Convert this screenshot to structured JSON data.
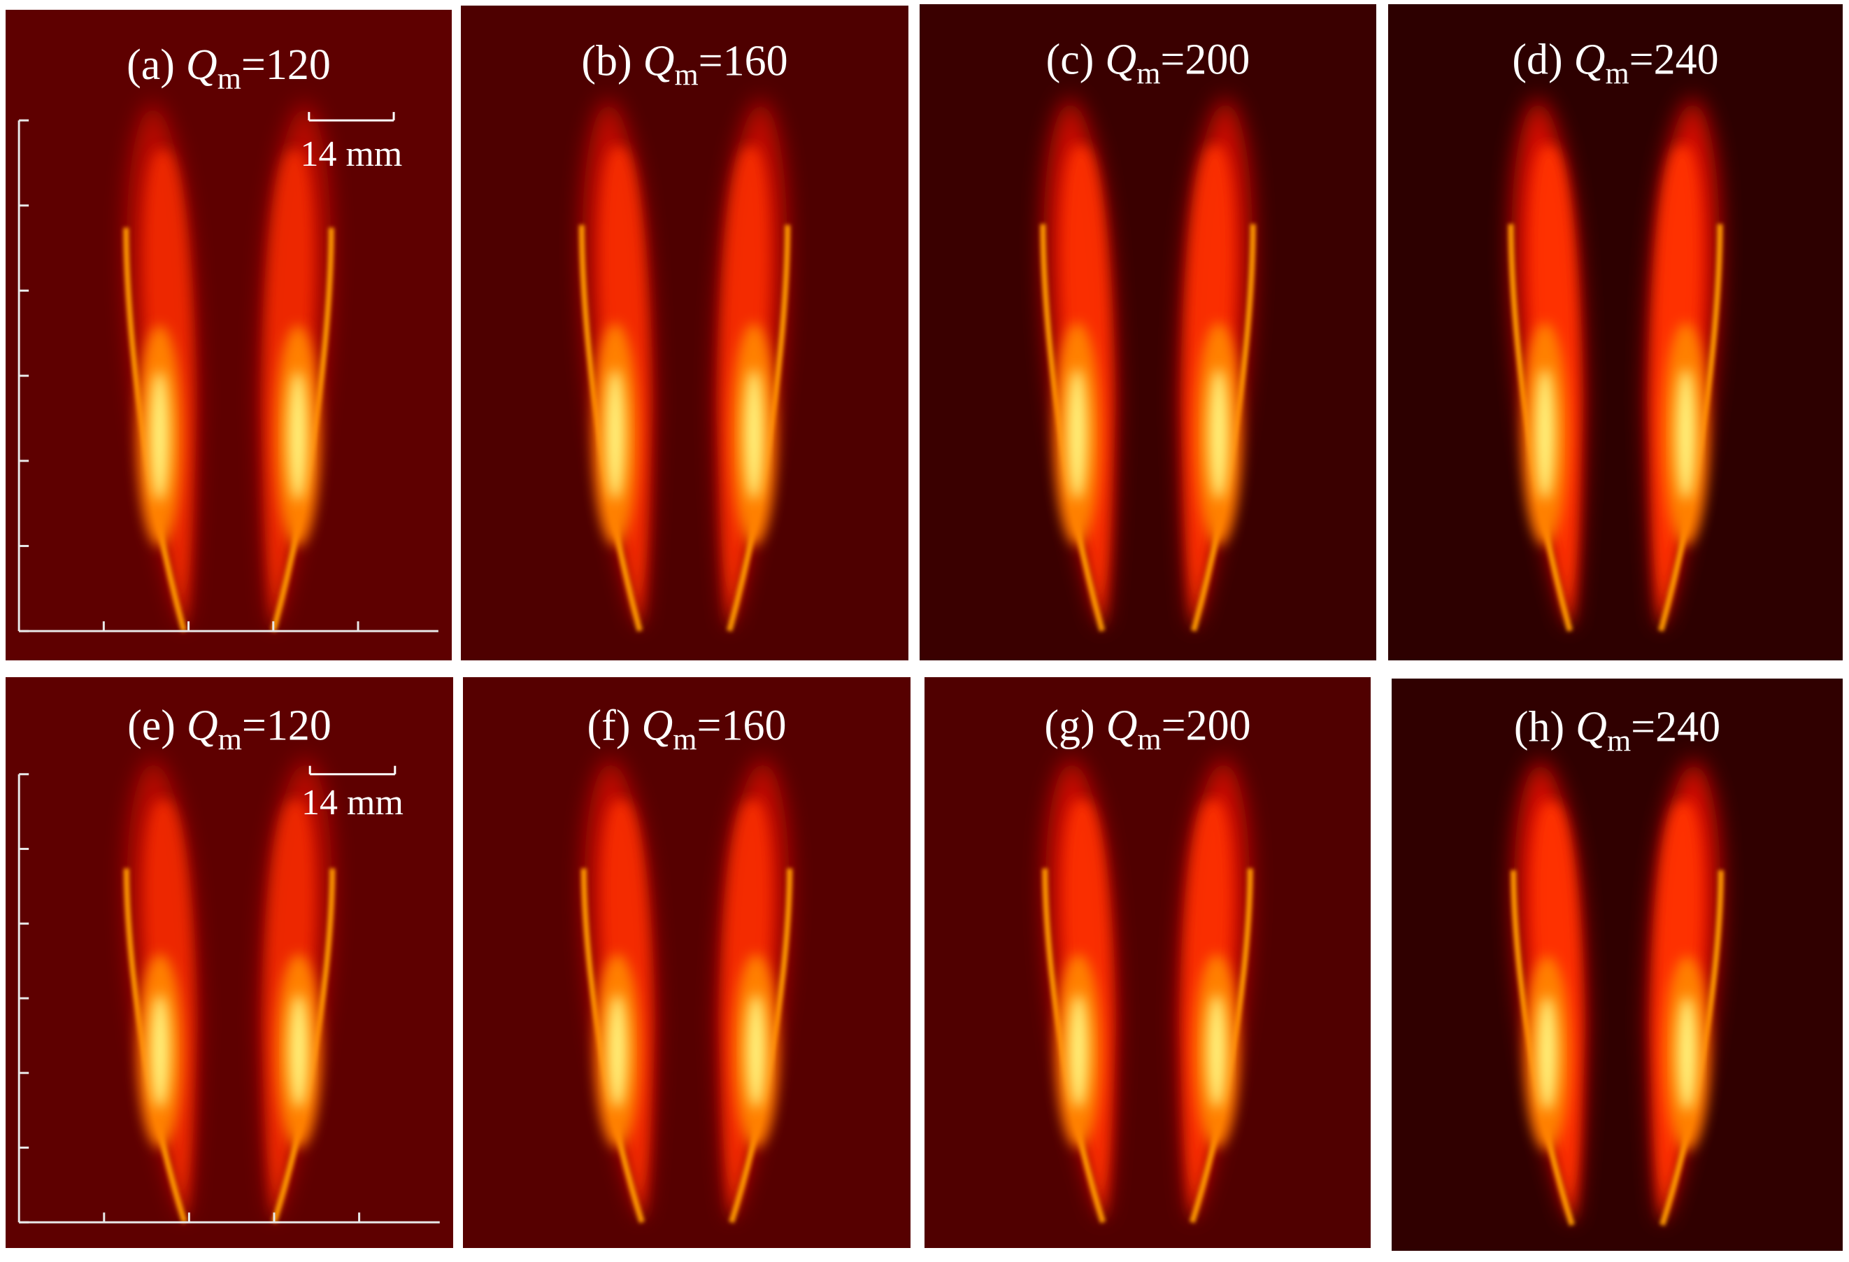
{
  "panels": [
    {
      "label": "(a)",
      "symbol": "Q",
      "subscript": "m",
      "value": "=120",
      "scale_bar": "14 mm"
    },
    {
      "label": "(b)",
      "symbol": "Q",
      "subscript": "m",
      "value": "=160"
    },
    {
      "label": "(c)",
      "symbol": "Q",
      "subscript": "m",
      "value": "=200"
    },
    {
      "label": "(d)",
      "symbol": "Q",
      "subscript": "m",
      "value": "=240"
    },
    {
      "label": "(e)",
      "symbol": "Q",
      "subscript": "m",
      "value": "=120",
      "scale_bar": "14 mm"
    },
    {
      "label": "(f)",
      "symbol": "Q",
      "subscript": "m",
      "value": "=160"
    },
    {
      "label": "(g)",
      "symbol": "Q",
      "subscript": "m",
      "value": "=200"
    },
    {
      "label": "(h)",
      "symbol": "Q",
      "subscript": "m",
      "value": "=240"
    }
  ]
}
